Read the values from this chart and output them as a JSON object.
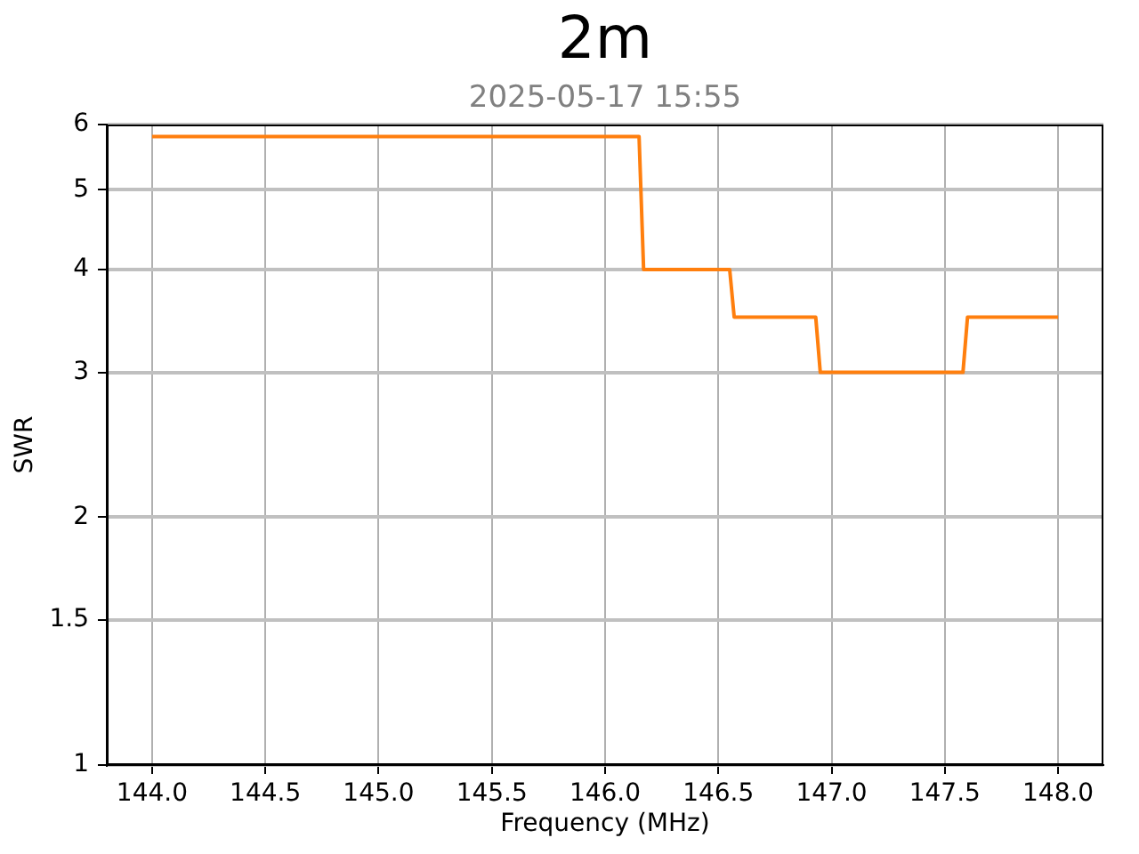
{
  "chart_data": {
    "type": "line",
    "title": "2m",
    "subtitle": "2025-05-17 15:55",
    "xlabel": "Frequency (MHz)",
    "ylabel": "SWR",
    "x": [
      144.0,
      146.15,
      146.17,
      146.55,
      146.57,
      146.93,
      146.95,
      147.58,
      147.6,
      148.0
    ],
    "values": [
      5.8,
      5.8,
      4,
      4,
      3.5,
      3.5,
      3,
      3,
      3.5,
      3.5
    ],
    "color": "#ff7f0e",
    "xlim": [
      143.8,
      148.2
    ],
    "xticks": [
      {
        "value": 144,
        "label": "144.0"
      },
      144.5,
      {
        "value": 145,
        "label": "145.0"
      },
      145.5,
      {
        "value": 146,
        "label": "146.0"
      },
      146.5,
      {
        "value": 147,
        "label": "147.0"
      },
      147.5,
      {
        "value": 148,
        "label": "148.0"
      }
    ],
    "ylim": [
      1,
      6
    ],
    "yticks": [
      1,
      1.5,
      2,
      3,
      4,
      5,
      6
    ],
    "log": "y",
    "grid": true,
    "legend": false
  }
}
